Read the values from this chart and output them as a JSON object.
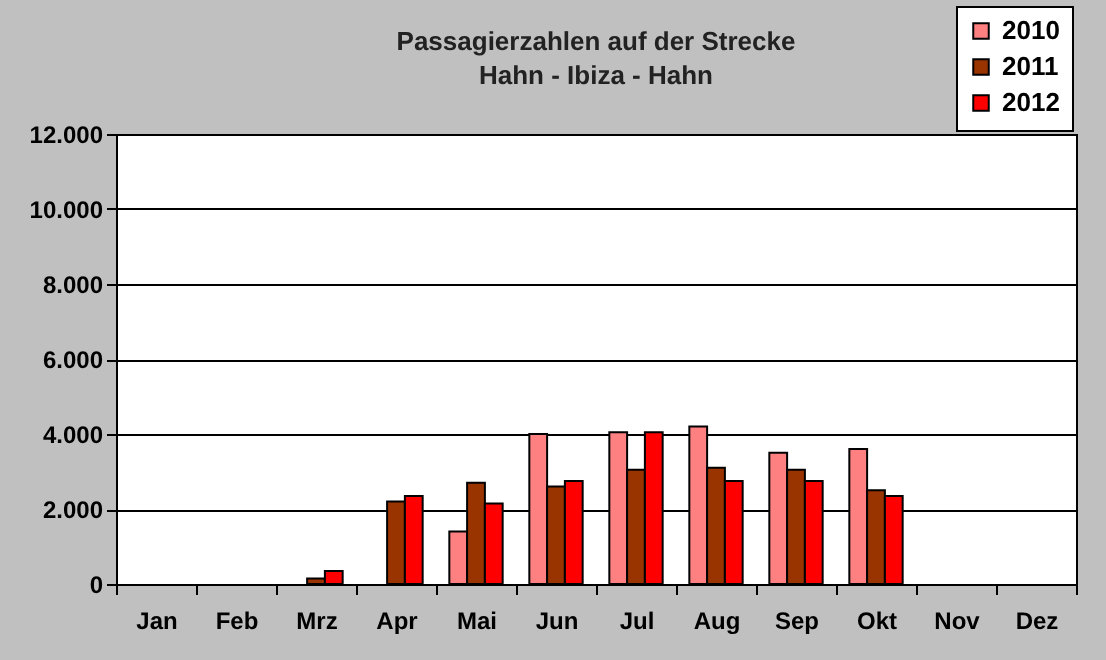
{
  "chart_data": {
    "type": "bar",
    "title": "Passagierzahlen auf der Strecke\nHahn - Ibiza  - Hahn",
    "categories": [
      "Jan",
      "Feb",
      "Mrz",
      "Apr",
      "Mai",
      "Jun",
      "Jul",
      "Aug",
      "Sep",
      "Okt",
      "Nov",
      "Dez"
    ],
    "series": [
      {
        "name": "2010",
        "color": "#ff8080",
        "values": [
          null,
          null,
          null,
          null,
          1400,
          4000,
          4050,
          4200,
          3500,
          3600,
          null,
          null
        ]
      },
      {
        "name": "2011",
        "color": "#993300",
        "values": [
          null,
          null,
          150,
          2200,
          2700,
          2600,
          3050,
          3100,
          3050,
          2500,
          null,
          null
        ]
      },
      {
        "name": "2012",
        "color": "#ff0000",
        "values": [
          null,
          null,
          350,
          2350,
          2150,
          2750,
          4050,
          2750,
          2750,
          2350,
          null,
          null
        ]
      }
    ],
    "ylim": [
      0,
      12000
    ],
    "yticks": [
      0,
      {
        "value": 2000,
        "label": "2.000"
      },
      {
        "value": 4000,
        "label": "4.000"
      },
      {
        "value": 6000,
        "label": "6.000"
      },
      {
        "value": 8000,
        "label": "8.000"
      },
      {
        "value": 10000,
        "label": "10.000"
      },
      {
        "value": 12000,
        "label": "12.000"
      }
    ],
    "grid": "y",
    "legend": "top right"
  }
}
